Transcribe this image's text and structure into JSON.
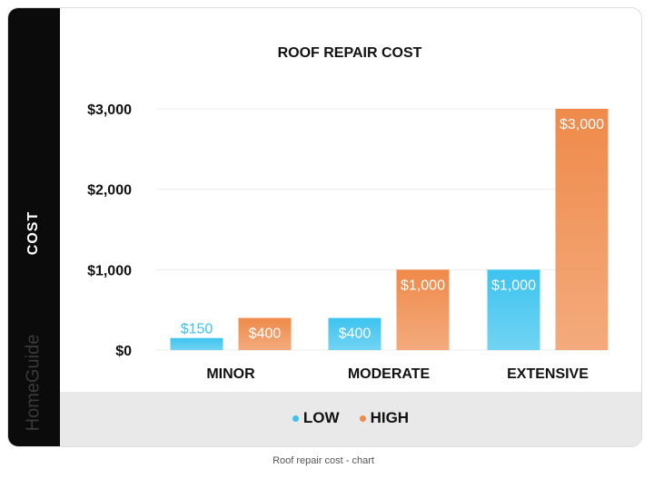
{
  "card": {
    "side_label": "COST",
    "brand": "HomeGuide"
  },
  "caption": "Roof repair cost - chart",
  "chart_data": {
    "type": "bar",
    "title": "ROOF REPAIR COST",
    "ylabel": "COST",
    "xlabel": "",
    "categories": [
      "MINOR",
      "MODERATE",
      "EXTENSIVE"
    ],
    "ylim": [
      0,
      3000
    ],
    "yticks": [
      0,
      1000,
      2000,
      3000
    ],
    "ytick_labels": [
      "$0",
      "$1,000",
      "$2,000",
      "$3,000"
    ],
    "grid": true,
    "legend_position": "bottom-center",
    "series": [
      {
        "name": "LOW",
        "color": "#3cc3ef",
        "values": [
          150,
          400,
          1000
        ],
        "labels": [
          "$150",
          "$400",
          "$1,000"
        ]
      },
      {
        "name": "HIGH",
        "color": "#ef8a4a",
        "values": [
          400,
          1000,
          3000
        ],
        "labels": [
          "$400",
          "$1,000",
          "$3,000"
        ]
      }
    ]
  }
}
